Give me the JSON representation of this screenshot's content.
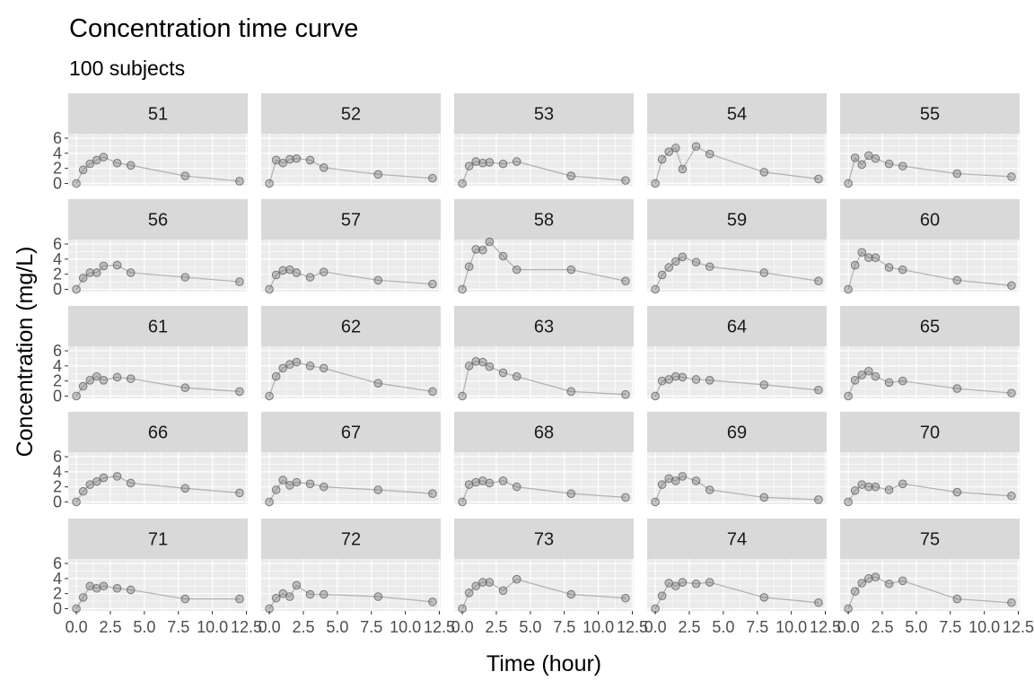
{
  "chart_data": {
    "type": "scatter",
    "title": "Concentration time curve",
    "subtitle": "100 subjects",
    "xlabel": "Time (hour)",
    "ylabel": "Concentration (mg/L)",
    "xlim": [
      0,
      12
    ],
    "ylim": [
      0,
      6.5
    ],
    "x_ticks": [
      0,
      2.5,
      5,
      7.5,
      10,
      12.5
    ],
    "x_tick_labels": [
      "0.0",
      "2.5",
      "5.0",
      "7.5",
      "10.0",
      "12.5"
    ],
    "y_ticks": [
      0,
      2,
      4,
      6
    ],
    "y_tick_labels": [
      "0",
      "2",
      "4",
      "6"
    ],
    "grid": true,
    "layout": "facet_wrap 5x5",
    "colors": {
      "points": "#666666",
      "line": "#b3b3b3",
      "panel_bg": "#ebebeb",
      "strip_bg": "#d9d9d9",
      "grid": "#ffffff"
    },
    "x": [
      0,
      0.5,
      1,
      1.5,
      2,
      3,
      4,
      8,
      12
    ],
    "series": [
      {
        "name": "51",
        "values": [
          0.0,
          1.8,
          2.6,
          3.1,
          3.5,
          2.7,
          2.4,
          1.0,
          0.3
        ]
      },
      {
        "name": "52",
        "values": [
          0.0,
          3.1,
          2.7,
          3.2,
          3.3,
          3.1,
          2.1,
          1.2,
          0.7
        ]
      },
      {
        "name": "53",
        "values": [
          0.0,
          2.3,
          2.9,
          2.7,
          2.8,
          2.6,
          2.9,
          1.0,
          0.4
        ]
      },
      {
        "name": "54",
        "values": [
          0.0,
          3.2,
          4.2,
          4.7,
          1.9,
          4.9,
          3.9,
          1.5,
          0.6
        ]
      },
      {
        "name": "55",
        "values": [
          0.0,
          3.4,
          2.5,
          3.7,
          3.3,
          2.6,
          2.3,
          1.3,
          0.9
        ]
      },
      {
        "name": "56",
        "values": [
          0.0,
          1.5,
          2.2,
          2.2,
          3.1,
          3.2,
          2.2,
          1.6,
          1.0
        ]
      },
      {
        "name": "57",
        "values": [
          0.0,
          1.9,
          2.5,
          2.6,
          2.2,
          1.6,
          2.3,
          1.2,
          0.7
        ]
      },
      {
        "name": "58",
        "values": [
          0.0,
          3.0,
          5.3,
          5.2,
          6.3,
          4.4,
          2.6,
          2.6,
          1.1
        ]
      },
      {
        "name": "59",
        "values": [
          0.0,
          1.9,
          2.9,
          3.7,
          4.3,
          3.6,
          3.0,
          2.2,
          1.1
        ]
      },
      {
        "name": "60",
        "values": [
          0.0,
          3.2,
          4.9,
          4.2,
          4.2,
          2.9,
          2.6,
          1.2,
          0.5
        ]
      },
      {
        "name": "61",
        "values": [
          0.0,
          1.3,
          2.1,
          2.6,
          2.1,
          2.5,
          2.3,
          1.1,
          0.6
        ]
      },
      {
        "name": "62",
        "values": [
          0.0,
          2.6,
          3.7,
          4.2,
          4.5,
          4.0,
          3.7,
          1.7,
          0.6
        ]
      },
      {
        "name": "63",
        "values": [
          0.0,
          4.0,
          4.6,
          4.5,
          3.9,
          3.1,
          2.6,
          0.6,
          0.2
        ]
      },
      {
        "name": "64",
        "values": [
          0.0,
          2.0,
          2.2,
          2.6,
          2.5,
          2.2,
          2.1,
          1.5,
          0.8
        ]
      },
      {
        "name": "65",
        "values": [
          0.0,
          2.1,
          2.8,
          3.3,
          2.6,
          1.8,
          2.0,
          1.0,
          0.4
        ]
      },
      {
        "name": "66",
        "values": [
          0.0,
          1.4,
          2.3,
          2.7,
          3.2,
          3.4,
          2.5,
          1.8,
          1.2
        ]
      },
      {
        "name": "67",
        "values": [
          0.0,
          1.6,
          2.9,
          2.2,
          2.6,
          2.4,
          2.0,
          1.6,
          1.1
        ]
      },
      {
        "name": "68",
        "values": [
          0.0,
          2.3,
          2.6,
          2.8,
          2.5,
          2.8,
          2.0,
          1.1,
          0.6
        ]
      },
      {
        "name": "69",
        "values": [
          0.0,
          2.3,
          3.1,
          2.8,
          3.4,
          2.8,
          1.6,
          0.6,
          0.3
        ]
      },
      {
        "name": "70",
        "values": [
          0.0,
          1.5,
          2.3,
          2.0,
          2.0,
          1.6,
          2.4,
          1.3,
          0.8
        ]
      },
      {
        "name": "71",
        "values": [
          0.0,
          1.5,
          3.0,
          2.7,
          3.0,
          2.7,
          2.5,
          1.3,
          1.3
        ]
      },
      {
        "name": "72",
        "values": [
          0.0,
          1.4,
          2.0,
          1.6,
          3.1,
          1.9,
          1.9,
          1.6,
          0.9
        ]
      },
      {
        "name": "73",
        "values": [
          0.0,
          2.1,
          3.0,
          3.5,
          3.5,
          2.4,
          3.9,
          1.9,
          1.4
        ]
      },
      {
        "name": "74",
        "values": [
          0.0,
          1.7,
          3.4,
          3.0,
          3.5,
          3.3,
          3.5,
          1.5,
          0.8
        ]
      },
      {
        "name": "75",
        "values": [
          0.0,
          2.3,
          3.4,
          4.0,
          4.2,
          3.3,
          3.7,
          1.3,
          0.8
        ]
      }
    ]
  }
}
